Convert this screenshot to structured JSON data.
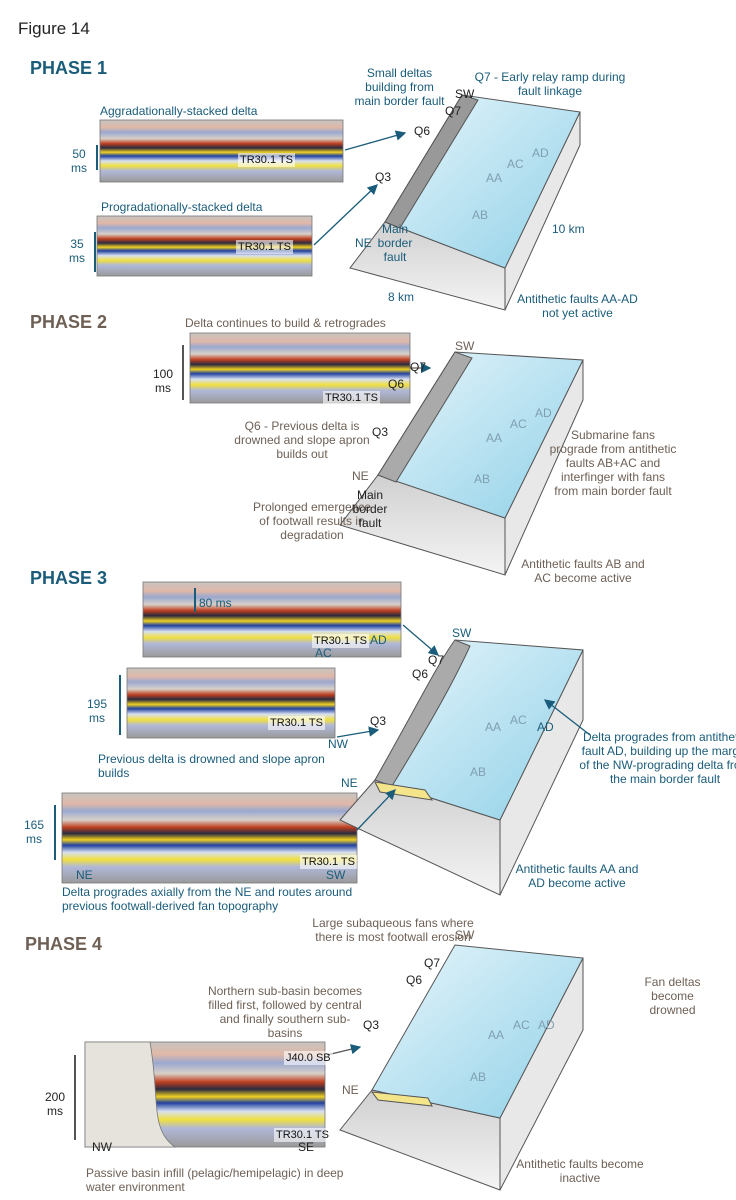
{
  "figure_label": "Figure 14",
  "phases": [
    {
      "title": "PHASE 1",
      "seismic": [
        {
          "caption": "Aggradationally-stacked delta",
          "scale": "50 ms",
          "horizon": "TR30.1 TS"
        },
        {
          "caption": "Progradationally-stacked delta",
          "scale": "35 ms",
          "horizon": "TR30.1 TS"
        }
      ],
      "block": {
        "directions": [
          "SW",
          "NE"
        ],
        "sequences": [
          "Q7",
          "Q6",
          "Q3"
        ],
        "faults": [
          "AD",
          "AC",
          "AA",
          "AB"
        ],
        "dimensions": [
          "10 km",
          "8 km"
        ]
      },
      "annotations": [
        "Small deltas building from main border fault",
        "Q7 - Early relay ramp during fault linkage",
        "Main border fault",
        "Antithetic faults AA-AD not yet active"
      ]
    },
    {
      "title": "PHASE 2",
      "seismic": [
        {
          "caption": "Delta continues to build & retrogrades",
          "scale": "100 ms",
          "horizon": "TR30.1 TS"
        }
      ],
      "block": {
        "directions": [
          "SW",
          "NE"
        ],
        "sequences": [
          "Q7",
          "Q6",
          "Q3"
        ],
        "faults": [
          "AD",
          "AC",
          "AA",
          "AB"
        ]
      },
      "annotations": [
        "Q6 - Previous delta is drowned and slope apron builds out",
        "Prolonged emergence of footwall results in degradation",
        "Main border fault",
        "Submarine fans prograde from antithetic faults AB+AC and interfinger with fans from main border fault",
        "Antithetic faults AB and AC become active"
      ]
    },
    {
      "title": "PHASE 3",
      "seismic": [
        {
          "scale": "80 ms",
          "horizon": "TR30.1 TS",
          "faults": [
            "AD",
            "AC"
          ]
        },
        {
          "scale": "195 ms",
          "horizon": "TR30.1 TS",
          "direction": "NW",
          "caption": "Previous delta is drowned and slope apron builds"
        },
        {
          "scale": "165 ms",
          "horizon": "TR30.1 TS",
          "directions": [
            "NE",
            "SW"
          ],
          "caption": "Delta progrades axially from the NE and routes around previous footwall-derived fan topography"
        }
      ],
      "block": {
        "directions": [
          "SW",
          "NE"
        ],
        "sequences": [
          "Q7",
          "Q6",
          "Q3"
        ],
        "faults": [
          "AC",
          "AA",
          "AB",
          "AD"
        ]
      },
      "annotations": [
        "Delta progrades from antithetic fault AD, building up the margin of the NW-prograding delta from the main border fault",
        "Antithetic faults AA and AD become active"
      ]
    },
    {
      "title": "PHASE 4",
      "seismic": [
        {
          "scale": "200 ms",
          "horizons": [
            "J40.0 SB",
            "TR30.1 TS"
          ],
          "directions": [
            "NW",
            "SE"
          ],
          "caption": "Passive basin infill (pelagic/hemipelagic) in deep water environment"
        }
      ],
      "block": {
        "directions": [
          "SW",
          "NE"
        ],
        "sequences": [
          "Q7",
          "Q6",
          "Q3"
        ],
        "faults": [
          "AC",
          "AA",
          "AD",
          "AB"
        ]
      },
      "annotations": [
        "Large subaqueous fans where there is most footwall erosion",
        "Northern sub-basin becomes filled first, followed by central and finally southern sub-basins",
        "Fan deltas become drowned",
        "Antithetic faults become inactive"
      ]
    }
  ]
}
